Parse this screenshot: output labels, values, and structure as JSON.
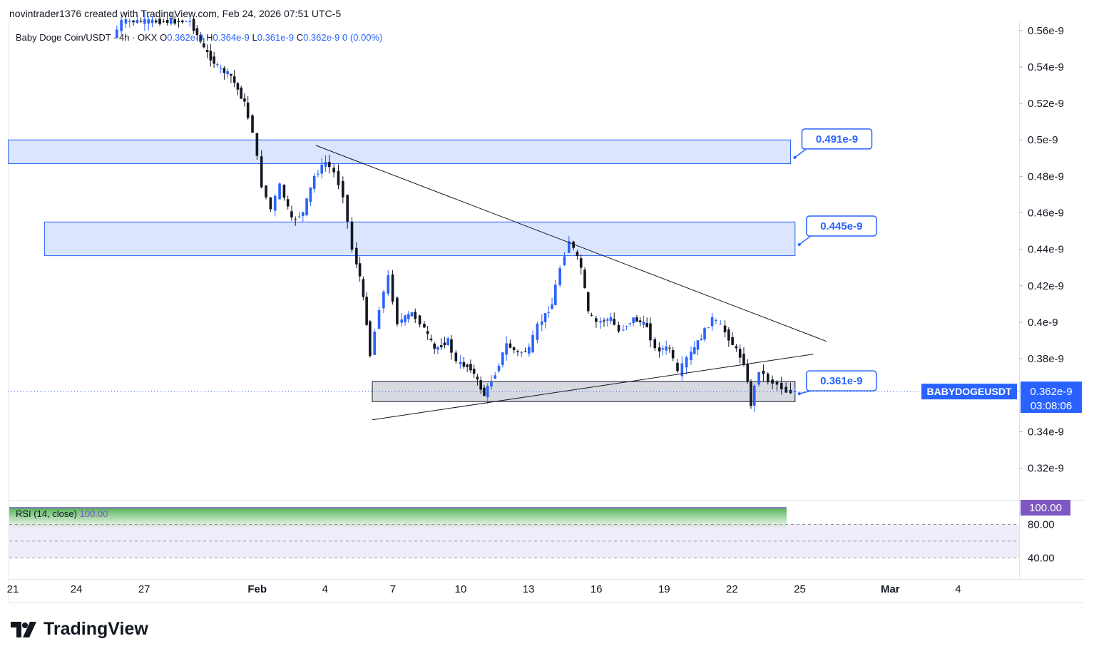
{
  "header": {
    "attribution": "novintrader1376 created with TradingView.com, Feb 24, 2026 07:51 UTC-5"
  },
  "legend": {
    "symbol": "Baby Doge Coin/USDT · 4h · OKX",
    "o_label": "O",
    "o_value": "0.362e-9",
    "h_label": "H",
    "h_value": "0.364e-9",
    "l_label": "L",
    "l_value": "0.361e-9",
    "c_label": "C",
    "c_value": "0.362e-9",
    "change": "0 (0.00%)"
  },
  "rsi": {
    "label": "RSI (14, close)",
    "value": "100.00"
  },
  "price_badge": {
    "ticker": "BABYDOGEUSDT",
    "price": "0.362e-9",
    "countdown": "03:08:06"
  },
  "rsi_badge": "100.00",
  "brand": {
    "name": "TradingView"
  },
  "colors": {
    "up": "#2962ff",
    "down": "#131722",
    "zone": "#2962ff",
    "grey_zone": "#787b86",
    "rsi_fill": "#4caf50",
    "rsi_band": "#7e57c2"
  },
  "chart_data": {
    "type": "candlestick",
    "y_unit": "e-9",
    "ylim": [
      0.303,
      0.565
    ],
    "y_ticks": [
      "0.56e-9",
      "0.54e-9",
      "0.52e-9",
      "0.5e-9",
      "0.48e-9",
      "0.46e-9",
      "0.44e-9",
      "0.42e-9",
      "0.4e-9",
      "0.38e-9",
      "0.34e-9",
      "0.32e-9"
    ],
    "y_tick_values": [
      0.56,
      0.54,
      0.52,
      0.5,
      0.48,
      0.46,
      0.44,
      0.42,
      0.4,
      0.38,
      0.34,
      0.32
    ],
    "x_ticks": [
      "21",
      "24",
      "27",
      "Feb",
      "4",
      "7",
      "10",
      "13",
      "16",
      "19",
      "22",
      "25",
      "Mar",
      "4"
    ],
    "x_tick_day_index": [
      0,
      3,
      6,
      11,
      14,
      17,
      20,
      23,
      26,
      29,
      32,
      35,
      39,
      42
    ],
    "x_range_days": [
      0,
      44.6
    ],
    "series_path": [
      [
        4.6,
        0.556
      ],
      [
        5.0,
        0.565
      ],
      [
        8.0,
        0.565
      ],
      [
        8.6,
        0.55
      ],
      [
        9.2,
        0.54
      ],
      [
        9.8,
        0.535
      ],
      [
        10.4,
        0.52
      ],
      [
        10.8,
        0.505
      ],
      [
        11.2,
        0.475
      ],
      [
        11.6,
        0.462
      ],
      [
        12.0,
        0.475
      ],
      [
        12.5,
        0.456
      ],
      [
        13.0,
        0.46
      ],
      [
        13.5,
        0.48
      ],
      [
        14.0,
        0.488
      ],
      [
        14.4,
        0.482
      ],
      [
        14.8,
        0.47
      ],
      [
        15.2,
        0.44
      ],
      [
        15.5,
        0.425
      ],
      [
        15.8,
        0.4
      ],
      [
        16.0,
        0.382
      ],
      [
        16.4,
        0.408
      ],
      [
        16.8,
        0.425
      ],
      [
        17.2,
        0.4
      ],
      [
        17.8,
        0.405
      ],
      [
        18.2,
        0.4
      ],
      [
        18.8,
        0.385
      ],
      [
        19.4,
        0.39
      ],
      [
        19.8,
        0.378
      ],
      [
        20.4,
        0.375
      ],
      [
        21.0,
        0.36
      ],
      [
        21.5,
        0.372
      ],
      [
        22.0,
        0.388
      ],
      [
        22.5,
        0.383
      ],
      [
        23.0,
        0.385
      ],
      [
        23.4,
        0.398
      ],
      [
        24.0,
        0.41
      ],
      [
        24.4,
        0.43
      ],
      [
        24.8,
        0.445
      ],
      [
        25.3,
        0.43
      ],
      [
        25.6,
        0.405
      ],
      [
        26.0,
        0.4
      ],
      [
        26.6,
        0.402
      ],
      [
        27.0,
        0.395
      ],
      [
        27.6,
        0.402
      ],
      [
        28.2,
        0.398
      ],
      [
        28.6,
        0.385
      ],
      [
        29.2,
        0.386
      ],
      [
        29.6,
        0.372
      ],
      [
        30.0,
        0.38
      ],
      [
        30.6,
        0.392
      ],
      [
        31.1,
        0.402
      ],
      [
        31.5,
        0.398
      ],
      [
        32.0,
        0.388
      ],
      [
        32.5,
        0.378
      ],
      [
        32.8,
        0.355
      ],
      [
        33.2,
        0.374
      ],
      [
        33.6,
        0.368
      ],
      [
        34.0,
        0.366
      ],
      [
        34.4,
        0.362
      ],
      [
        34.8,
        0.362
      ]
    ],
    "zones": [
      {
        "label": "0.491e-9",
        "top": 0.5,
        "bottom": 0.487,
        "from_day": -0.2,
        "to_day": 34.4
      },
      {
        "label": "0.445e-9",
        "top": 0.455,
        "bottom": 0.4365,
        "from_day": 1.4,
        "to_day": 34.6
      },
      {
        "label": "0.361e-9",
        "top": 0.3675,
        "bottom": 0.3565,
        "from_day": 15.9,
        "to_day": 34.6,
        "style": "grey"
      }
    ],
    "trendlines": [
      {
        "from": [
          13.4,
          0.497
        ],
        "to": [
          36.0,
          0.3895
        ]
      },
      {
        "from": [
          15.9,
          0.3465
        ],
        "to": [
          35.4,
          0.3825
        ]
      }
    ],
    "last_price": 0.362,
    "rsi_ylim": [
      25,
      100
    ],
    "rsi_ticks": [
      "80.00",
      "40.00"
    ],
    "rsi_tick_values": [
      80,
      40
    ]
  }
}
